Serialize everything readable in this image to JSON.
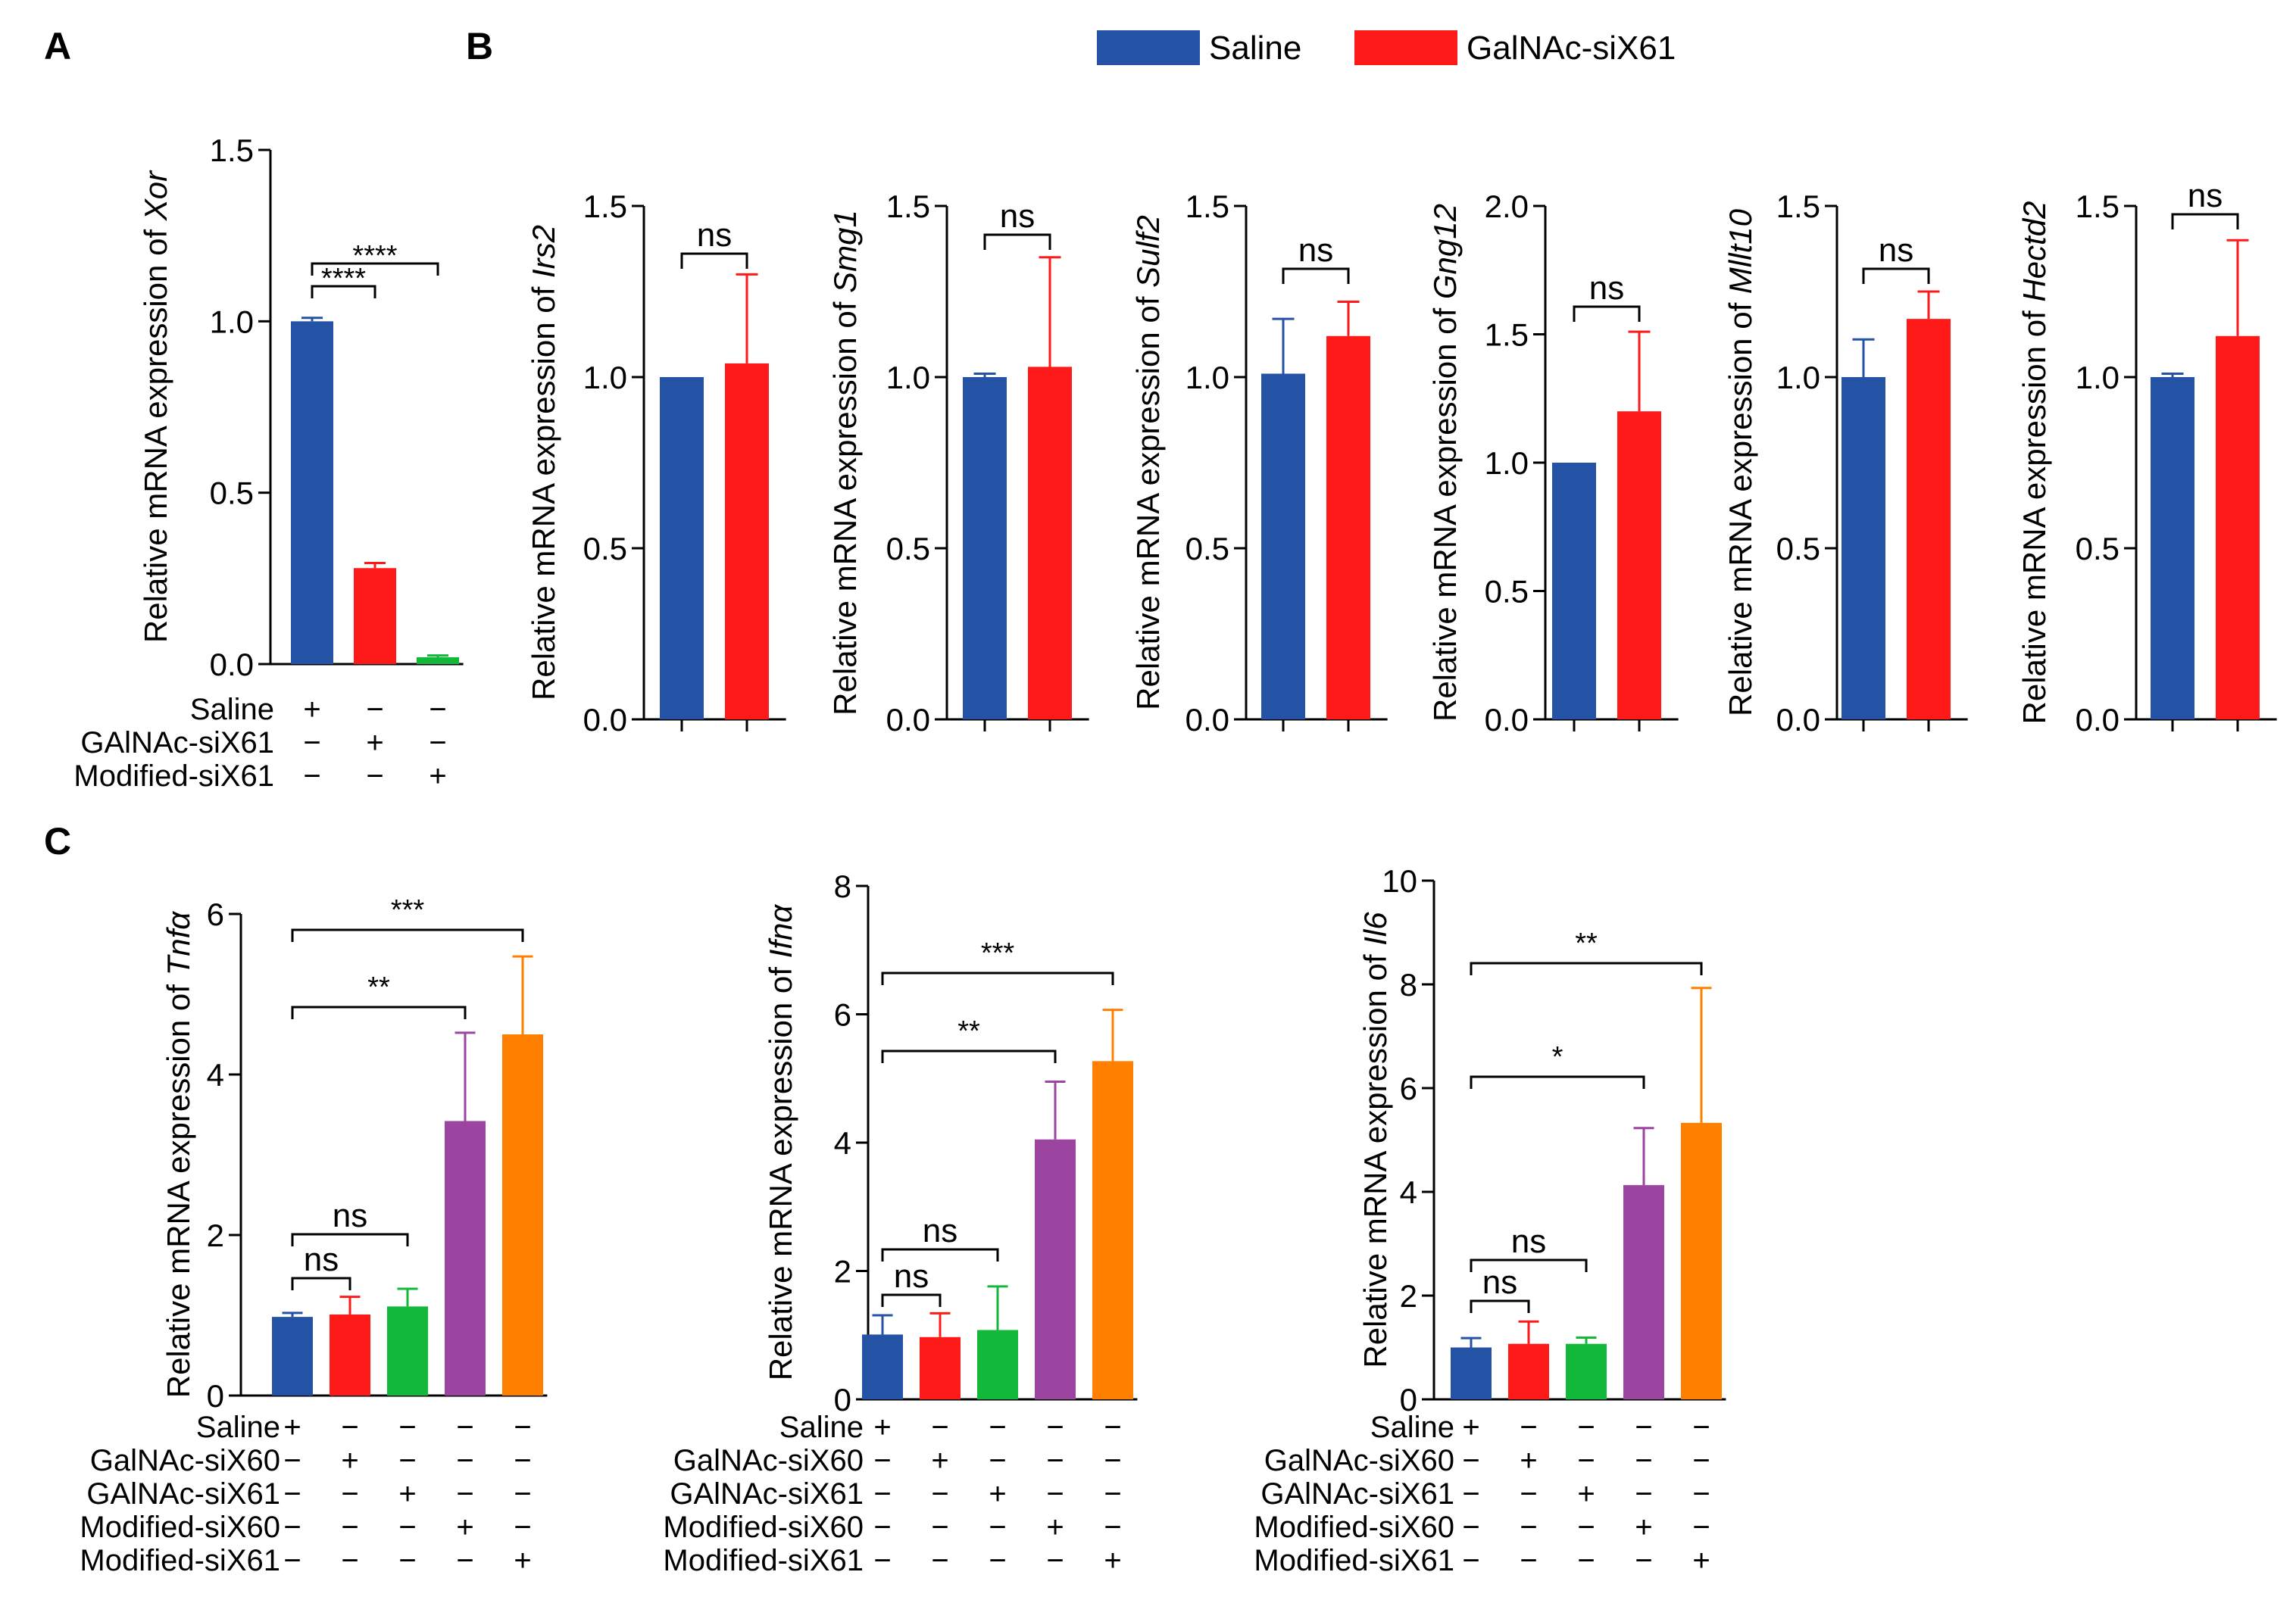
{
  "panel_letters": [
    "A",
    "B",
    "C"
  ],
  "legend": [
    {
      "label": "Saline",
      "color": "#2452A5"
    },
    {
      "label": "GalNAc-siX61",
      "color": "#FF1A1A"
    }
  ],
  "chart_data": [
    {
      "id": "A",
      "type": "bar",
      "ylabel_prefix": "Relative mRNA expression of ",
      "ylabel_gene": "Xor",
      "ylim": [
        0,
        1.5
      ],
      "yticks": [
        "0.0",
        "0.5",
        "1.0",
        "1.5"
      ],
      "tick_values": [
        0,
        0.5,
        1.0,
        1.5
      ],
      "categories": [
        "Saline",
        "GAlNAc-siX61",
        "Modified-siX61"
      ],
      "values": [
        1.0,
        0.28,
        0.02
      ],
      "errors": [
        0.01,
        0.015,
        0.005
      ],
      "colors": [
        "#2452A5",
        "#FF1A1A",
        "#12B83A"
      ],
      "condition_rows": [
        {
          "label": "Saline",
          "marks": [
            "+",
            "−",
            "−"
          ]
        },
        {
          "label": "GAlNAc-siX61",
          "marks": [
            "−",
            "+",
            "−"
          ]
        },
        {
          "label": "Modified-siX61",
          "marks": [
            "−",
            "−",
            "+"
          ]
        }
      ],
      "significance": [
        {
          "from": 0,
          "to": 1,
          "label": "****"
        },
        {
          "from": 0,
          "to": 2,
          "label": "****"
        }
      ]
    },
    {
      "id": "B1",
      "type": "bar",
      "ylabel_prefix": "Relative mRNA expression of ",
      "ylabel_gene": "Irs2",
      "ylim": [
        0,
        1.5
      ],
      "yticks": [
        "0.0",
        "0.5",
        "1.0",
        "1.5"
      ],
      "tick_values": [
        0,
        0.5,
        1.0,
        1.5
      ],
      "categories": [
        "Saline",
        "GalNAc-siX61"
      ],
      "values": [
        1.0,
        1.04
      ],
      "errors": [
        0.0,
        0.26
      ],
      "colors": [
        "#2452A5",
        "#FF1A1A"
      ],
      "significance": [
        {
          "from": 0,
          "to": 1,
          "label": "ns"
        }
      ]
    },
    {
      "id": "B2",
      "type": "bar",
      "ylabel_prefix": "Relative mRNA expression of ",
      "ylabel_gene": "Smg1",
      "ylim": [
        0,
        1.5
      ],
      "yticks": [
        "0.0",
        "0.5",
        "1.0",
        "1.5"
      ],
      "tick_values": [
        0,
        0.5,
        1.0,
        1.5
      ],
      "categories": [
        "Saline",
        "GalNAc-siX61"
      ],
      "values": [
        1.0,
        1.03
      ],
      "errors": [
        0.01,
        0.32
      ],
      "colors": [
        "#2452A5",
        "#FF1A1A"
      ],
      "significance": [
        {
          "from": 0,
          "to": 1,
          "label": "ns"
        }
      ]
    },
    {
      "id": "B3",
      "type": "bar",
      "ylabel_prefix": "Relative mRNA expression of ",
      "ylabel_gene": "Sulf2",
      "ylim": [
        0,
        1.5
      ],
      "yticks": [
        "0.0",
        "0.5",
        "1.0",
        "1.5"
      ],
      "tick_values": [
        0,
        0.5,
        1.0,
        1.5
      ],
      "categories": [
        "Saline",
        "GalNAc-siX61"
      ],
      "values": [
        1.01,
        1.12
      ],
      "errors": [
        0.16,
        0.1
      ],
      "colors": [
        "#2452A5",
        "#FF1A1A"
      ],
      "significance": [
        {
          "from": 0,
          "to": 1,
          "label": "ns"
        }
      ]
    },
    {
      "id": "B4",
      "type": "bar",
      "ylabel_prefix": "Relative mRNA expression of ",
      "ylabel_gene": "Gng12",
      "ylim": [
        0,
        2.0
      ],
      "yticks": [
        "0.0",
        "0.5",
        "1.0",
        "1.5",
        "2.0"
      ],
      "tick_values": [
        0,
        0.5,
        1.0,
        1.5,
        2.0
      ],
      "categories": [
        "Saline",
        "GalNAc-siX61"
      ],
      "values": [
        1.0,
        1.2
      ],
      "errors": [
        0.0,
        0.31
      ],
      "colors": [
        "#2452A5",
        "#FF1A1A"
      ],
      "significance": [
        {
          "from": 0,
          "to": 1,
          "label": "ns"
        }
      ]
    },
    {
      "id": "B5",
      "type": "bar",
      "ylabel_prefix": "Relative mRNA expression of ",
      "ylabel_gene": "Mllt10",
      "ylim": [
        0,
        1.5
      ],
      "yticks": [
        "0.0",
        "0.5",
        "1.0",
        "1.5"
      ],
      "tick_values": [
        0,
        0.5,
        1.0,
        1.5
      ],
      "categories": [
        "Saline",
        "GalNAc-siX61"
      ],
      "values": [
        1.0,
        1.17
      ],
      "errors": [
        0.11,
        0.08
      ],
      "colors": [
        "#2452A5",
        "#FF1A1A"
      ],
      "significance": [
        {
          "from": 0,
          "to": 1,
          "label": "ns"
        }
      ]
    },
    {
      "id": "B6",
      "type": "bar",
      "ylabel_prefix": "Relative mRNA expression of ",
      "ylabel_gene": "Hectd2",
      "ylim": [
        0,
        1.5
      ],
      "yticks": [
        "0.0",
        "0.5",
        "1.0",
        "1.5"
      ],
      "tick_values": [
        0,
        0.5,
        1.0,
        1.5
      ],
      "categories": [
        "Saline",
        "GalNAc-siX61"
      ],
      "values": [
        1.0,
        1.12
      ],
      "errors": [
        0.01,
        0.28
      ],
      "colors": [
        "#2452A5",
        "#FF1A1A"
      ],
      "significance": [
        {
          "from": 0,
          "to": 1,
          "label": "ns"
        }
      ]
    },
    {
      "id": "C1",
      "type": "bar",
      "ylabel_prefix": "Relative mRNA expression of ",
      "ylabel_gene": "Tnfα",
      "ylim": [
        0,
        6
      ],
      "yticks": [
        "0",
        "2",
        "4",
        "6"
      ],
      "tick_values": [
        0,
        2,
        4,
        6
      ],
      "categories": [
        "Saline",
        "GalNAc-siX60",
        "GAlNAc-siX61",
        "Modified-siX60",
        "Modified-siX61"
      ],
      "values": [
        0.98,
        1.01,
        1.11,
        3.42,
        4.5
      ],
      "errors": [
        0.05,
        0.22,
        0.22,
        1.1,
        0.97
      ],
      "colors": [
        "#2452A5",
        "#FF1A1A",
        "#12B83A",
        "#9B45A1",
        "#FF8000"
      ],
      "condition_rows": [
        {
          "label": "Saline",
          "marks": [
            "+",
            "−",
            "−",
            "−",
            "−"
          ]
        },
        {
          "label": "GalNAc-siX60",
          "marks": [
            "−",
            "+",
            "−",
            "−",
            "−"
          ]
        },
        {
          "label": "GAlNAc-siX61",
          "marks": [
            "−",
            "−",
            "+",
            "−",
            "−"
          ]
        },
        {
          "label": "Modified-siX60",
          "marks": [
            "−",
            "−",
            "−",
            "+",
            "−"
          ]
        },
        {
          "label": "Modified-siX61",
          "marks": [
            "−",
            "−",
            "−",
            "−",
            "+"
          ]
        }
      ],
      "significance": [
        {
          "from": 0,
          "to": 1,
          "label": "ns"
        },
        {
          "from": 0,
          "to": 2,
          "label": "ns"
        },
        {
          "from": 0,
          "to": 3,
          "label": "**"
        },
        {
          "from": 0,
          "to": 4,
          "label": "***"
        }
      ]
    },
    {
      "id": "C2",
      "type": "bar",
      "ylabel_prefix": "Relative mRNA expression of ",
      "ylabel_gene": "Ifnα",
      "ylim": [
        0,
        8
      ],
      "yticks": [
        "0",
        "2",
        "4",
        "6",
        "8"
      ],
      "tick_values": [
        0,
        2,
        4,
        6,
        8
      ],
      "categories": [
        "Saline",
        "GalNAc-siX60",
        "GAlNAc-siX61",
        "Modified-siX60",
        "Modified-siX61"
      ],
      "values": [
        1.01,
        0.97,
        1.08,
        4.05,
        5.27
      ],
      "errors": [
        0.3,
        0.37,
        0.68,
        0.9,
        0.8
      ],
      "colors": [
        "#2452A5",
        "#FF1A1A",
        "#12B83A",
        "#9B45A1",
        "#FF8000"
      ],
      "condition_rows": [
        {
          "label": "Saline",
          "marks": [
            "+",
            "−",
            "−",
            "−",
            "−"
          ]
        },
        {
          "label": "GalNAc-siX60",
          "marks": [
            "−",
            "+",
            "−",
            "−",
            "−"
          ]
        },
        {
          "label": "GAlNAc-siX61",
          "marks": [
            "−",
            "−",
            "+",
            "−",
            "−"
          ]
        },
        {
          "label": "Modified-siX60",
          "marks": [
            "−",
            "−",
            "−",
            "+",
            "−"
          ]
        },
        {
          "label": "Modified-siX61",
          "marks": [
            "−",
            "−",
            "−",
            "−",
            "+"
          ]
        }
      ],
      "significance": [
        {
          "from": 0,
          "to": 1,
          "label": "ns"
        },
        {
          "from": 0,
          "to": 2,
          "label": "ns"
        },
        {
          "from": 0,
          "to": 3,
          "label": "**"
        },
        {
          "from": 0,
          "to": 4,
          "label": "***"
        }
      ]
    },
    {
      "id": "C3",
      "type": "bar",
      "ylabel_prefix": "Relative mRNA expression of ",
      "ylabel_gene": "Il6",
      "ylim": [
        0,
        10
      ],
      "yticks": [
        "0",
        "2",
        "4",
        "6",
        "8",
        "10"
      ],
      "tick_values": [
        0,
        2,
        4,
        6,
        8,
        10
      ],
      "categories": [
        "Saline",
        "GalNAc-siX60",
        "GAlNAc-siX61",
        "Modified-siX60",
        "Modified-siX61"
      ],
      "values": [
        1.0,
        1.07,
        1.07,
        4.13,
        5.33
      ],
      "errors": [
        0.18,
        0.43,
        0.12,
        1.1,
        2.6
      ],
      "colors": [
        "#2452A5",
        "#FF1A1A",
        "#12B83A",
        "#9B45A1",
        "#FF8000"
      ],
      "condition_rows": [
        {
          "label": "Saline",
          "marks": [
            "+",
            "−",
            "−",
            "−",
            "−"
          ]
        },
        {
          "label": "GalNAc-siX60",
          "marks": [
            "−",
            "+",
            "−",
            "−",
            "−"
          ]
        },
        {
          "label": "GAlNAc-siX61",
          "marks": [
            "−",
            "−",
            "+",
            "−",
            "−"
          ]
        },
        {
          "label": "Modified-siX60",
          "marks": [
            "−",
            "−",
            "−",
            "+",
            "−"
          ]
        },
        {
          "label": "Modified-siX61",
          "marks": [
            "−",
            "−",
            "−",
            "−",
            "+"
          ]
        }
      ],
      "significance": [
        {
          "from": 0,
          "to": 1,
          "label": "ns"
        },
        {
          "from": 0,
          "to": 2,
          "label": "ns"
        },
        {
          "from": 0,
          "to": 3,
          "label": "*"
        },
        {
          "from": 0,
          "to": 4,
          "label": "**"
        }
      ]
    }
  ]
}
